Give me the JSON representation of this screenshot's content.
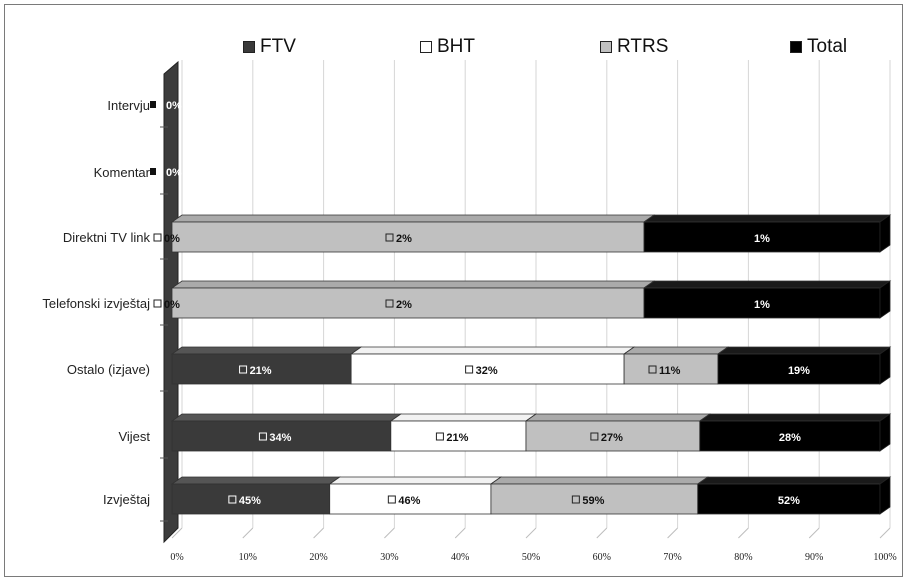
{
  "chart_data": {
    "type": "bar",
    "subtype": "stacked-100-horizontal-3d",
    "categories": [
      "Intervju",
      "Komentar",
      "Direktni TV link",
      "Telefonski izvještaj",
      "Ostalo (izjave)",
      "Vijest",
      "Izvještaj"
    ],
    "series": [
      {
        "name": "FTV",
        "color": "#3a3a3a",
        "values": [
          0,
          0,
          0,
          0,
          21,
          34,
          45
        ]
      },
      {
        "name": "BHT",
        "color": "#ffffff",
        "values": [
          0,
          0,
          0,
          0,
          32,
          21,
          46
        ]
      },
      {
        "name": "RTRS",
        "color": "#c0c0c0",
        "values": [
          0,
          0,
          2,
          2,
          11,
          27,
          59
        ]
      },
      {
        "name": "Total",
        "color": "#000000",
        "values": [
          0,
          0,
          1,
          1,
          19,
          28,
          52
        ]
      }
    ],
    "bar_labels": [
      [
        {
          "text": "0%",
          "series": 0
        }
      ],
      [
        {
          "text": "0%",
          "series": 0
        }
      ],
      [
        {
          "text": "0%",
          "series": 1
        },
        {
          "text": "2%",
          "series": 2
        },
        {
          "text": "1%",
          "series": 3
        }
      ],
      [
        {
          "text": "0%",
          "series": 1
        },
        {
          "text": "2%",
          "series": 2
        },
        {
          "text": "1%",
          "series": 3
        }
      ],
      [
        {
          "text": "21%",
          "series": 0
        },
        {
          "text": "32%",
          "series": 1
        },
        {
          "text": "11%",
          "series": 2
        },
        {
          "text": "19%",
          "series": 3
        }
      ],
      [
        {
          "text": "34%",
          "series": 0
        },
        {
          "text": "21%",
          "series": 1
        },
        {
          "text": "27%",
          "series": 2
        },
        {
          "text": "28%",
          "series": 3
        }
      ],
      [
        {
          "text": "45%",
          "series": 0
        },
        {
          "text": "46%",
          "series": 1
        },
        {
          "text": "59%",
          "series": 2
        },
        {
          "text": "52%",
          "series": 3
        }
      ]
    ],
    "xticks": [
      "0%",
      "10%",
      "20%",
      "30%",
      "40%",
      "50%",
      "60%",
      "70%",
      "80%",
      "90%",
      "100%"
    ],
    "xlim": [
      0,
      100
    ],
    "xlabel": "",
    "ylabel": "",
    "title": "",
    "legend_position": "top",
    "grid": true
  }
}
